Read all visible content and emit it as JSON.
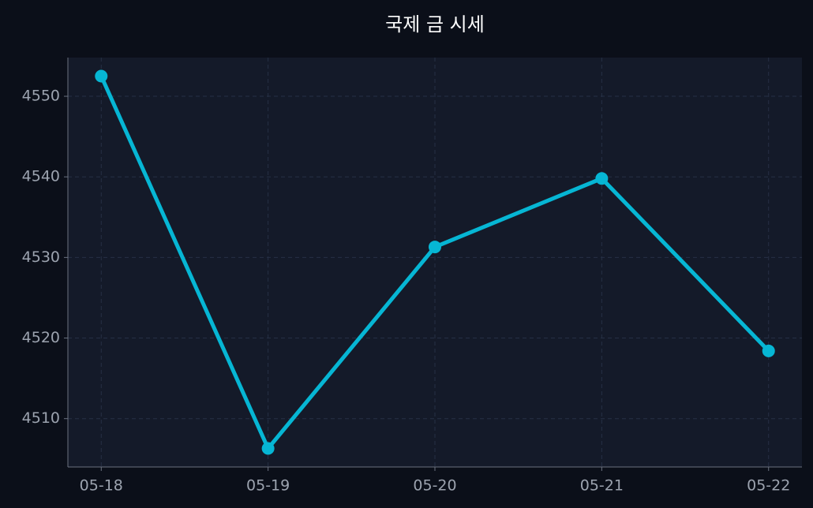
{
  "chart_data": {
    "type": "line",
    "title": "국제 금 시세",
    "categories": [
      "05-18",
      "05-19",
      "05-20",
      "05-21",
      "05-22"
    ],
    "series": [
      {
        "color": "#06b6d4",
        "values": [
          4552.5,
          4506.3,
          4531.3,
          4539.8,
          4518.4
        ]
      }
    ],
    "ylim": [
      4504.0,
      4554.8
    ],
    "yticks": [
      4510,
      4520,
      4530,
      4540,
      4550
    ],
    "grid": true
  }
}
